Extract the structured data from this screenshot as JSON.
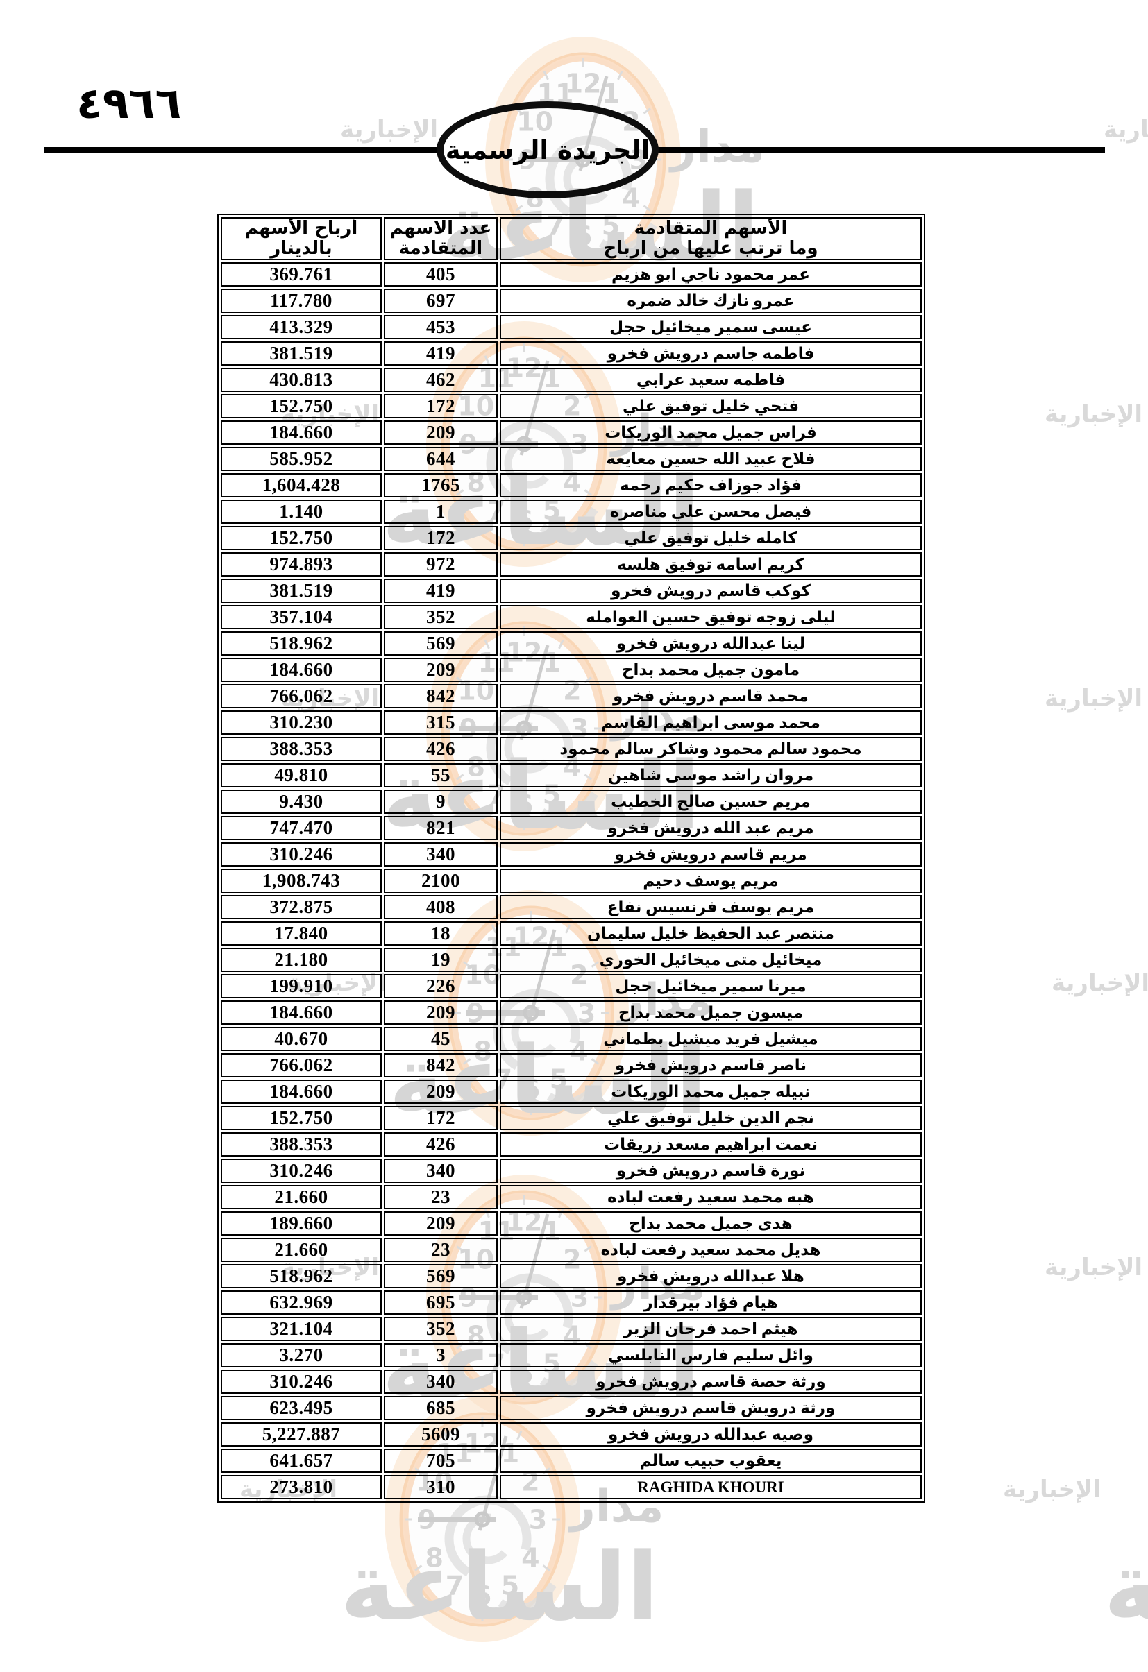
{
  "page": {
    "number": "٤٩٦٦"
  },
  "masthead": {
    "title": "الجريدة الرسمية"
  },
  "watermark": {
    "brand_top": "مدار",
    "brand_big": "الساعة",
    "brand_side": "الإخبارية",
    "clock_numbers": [
      "1",
      "2",
      "3",
      "4",
      "5",
      "6",
      "7",
      "8",
      "9",
      "10",
      "11",
      "12"
    ],
    "accent_color": "#f6b782",
    "text_color": "#d5d5d5"
  },
  "table": {
    "headers": {
      "name_l1": "الأسهم المتقادمة",
      "name_l2": "وما ترتب عليها من ارباح",
      "shares_l1": "عدد الاسهم",
      "shares_l2": "المتقادمة",
      "dividends_l1": "أرباح الأسهم",
      "dividends_l2": "بالدينار"
    },
    "rows": [
      {
        "name": "عمر محمود ناجي ابو هزيم",
        "shares": "405",
        "dividends": "369.761"
      },
      {
        "name": "عمرو نازك خالد ضمره",
        "shares": "697",
        "dividends": "117.780"
      },
      {
        "name": "عيسى سمير ميخائيل حجل",
        "shares": "453",
        "dividends": "413.329"
      },
      {
        "name": "فاطمه جاسم درويش فخرو",
        "shares": "419",
        "dividends": "381.519"
      },
      {
        "name": "فاطمه سعيد عرابي",
        "shares": "462",
        "dividends": "430.813"
      },
      {
        "name": "فتحي خليل توفيق علي",
        "shares": "172",
        "dividends": "152.750"
      },
      {
        "name": "فراس جميل محمد الوريكات",
        "shares": "209",
        "dividends": "184.660"
      },
      {
        "name": "فلاح عبيد الله حسين معايعه",
        "shares": "644",
        "dividends": "585.952"
      },
      {
        "name": "فؤاد جوزاف حكيم رحمه",
        "shares": "1765",
        "dividends": "1,604.428"
      },
      {
        "name": "فيصل محسن علي مناصره",
        "shares": "1",
        "dividends": "1.140"
      },
      {
        "name": "كامله خليل توفيق علي",
        "shares": "172",
        "dividends": "152.750"
      },
      {
        "name": "كريم اسامه توفيق هلسه",
        "shares": "972",
        "dividends": "974.893"
      },
      {
        "name": "كوكب قاسم درويش فخرو",
        "shares": "419",
        "dividends": "381.519"
      },
      {
        "name": "ليلى زوجه توفيق حسين العوامله",
        "shares": "352",
        "dividends": "357.104"
      },
      {
        "name": "لينا عبدالله درويش فخرو",
        "shares": "569",
        "dividends": "518.962"
      },
      {
        "name": "مامون جميل محمد بداح",
        "shares": "209",
        "dividends": "184.660"
      },
      {
        "name": "محمد قاسم درويش فخرو",
        "shares": "842",
        "dividends": "766.062"
      },
      {
        "name": "محمد موسى ابراهيم القاسم",
        "shares": "315",
        "dividends": "310.230"
      },
      {
        "name": "محمود سالم محمود وشاكر سالم محمود",
        "shares": "426",
        "dividends": "388.353"
      },
      {
        "name": "مروان راشد موسى شاهين",
        "shares": "55",
        "dividends": "49.810"
      },
      {
        "name": "مريم حسين صالح الخطيب",
        "shares": "9",
        "dividends": "9.430"
      },
      {
        "name": "مريم عبد الله درويش فخرو",
        "shares": "821",
        "dividends": "747.470"
      },
      {
        "name": "مريم قاسم درويش فخرو",
        "shares": "340",
        "dividends": "310.246"
      },
      {
        "name": "مريم يوسف دحيم",
        "shares": "2100",
        "dividends": "1,908.743"
      },
      {
        "name": "مريم يوسف فرنسيس نفاع",
        "shares": "408",
        "dividends": "372.875"
      },
      {
        "name": "منتصر عبد الحفيظ خليل سليمان",
        "shares": "18",
        "dividends": "17.840"
      },
      {
        "name": "ميخائيل متى ميخائيل الخوري",
        "shares": "19",
        "dividends": "21.180"
      },
      {
        "name": "ميرنا سمير ميخائيل حجل",
        "shares": "226",
        "dividends": "199.910"
      },
      {
        "name": "ميسون جميل محمد بداح",
        "shares": "209",
        "dividends": "184.660"
      },
      {
        "name": "ميشيل فريد ميشيل بطماني",
        "shares": "45",
        "dividends": "40.670"
      },
      {
        "name": "ناصر قاسم درويش فخرو",
        "shares": "842",
        "dividends": "766.062"
      },
      {
        "name": "نبيله جميل محمد الوريكات",
        "shares": "209",
        "dividends": "184.660"
      },
      {
        "name": "نجم الدين خليل توفيق علي",
        "shares": "172",
        "dividends": "152.750"
      },
      {
        "name": "نعمت ابراهيم مسعد زريقات",
        "shares": "426",
        "dividends": "388.353"
      },
      {
        "name": "نورة قاسم درويش فخرو",
        "shares": "340",
        "dividends": "310.246"
      },
      {
        "name": "هبه محمد سعيد رفعت لباده",
        "shares": "23",
        "dividends": "21.660"
      },
      {
        "name": "هدى جميل محمد بداح",
        "shares": "209",
        "dividends": "189.660"
      },
      {
        "name": "هديل محمد سعيد رفعت لباده",
        "shares": "23",
        "dividends": "21.660"
      },
      {
        "name": "هلا عبدالله درويش فخرو",
        "shares": "569",
        "dividends": "518.962"
      },
      {
        "name": "هيام فؤاد بيرقدار",
        "shares": "695",
        "dividends": "632.969"
      },
      {
        "name": "هيثم احمد فرحان الزير",
        "shares": "352",
        "dividends": "321.104"
      },
      {
        "name": "وائل سليم فارس النابلسي",
        "shares": "3",
        "dividends": "3.270"
      },
      {
        "name": "ورثة حصة قاسم درويش فخرو",
        "shares": "340",
        "dividends": "310.246"
      },
      {
        "name": "ورثة درويش قاسم درويش فخرو",
        "shares": "685",
        "dividends": "623.495"
      },
      {
        "name": "وصيه عبدالله درويش فخرو",
        "shares": "5609",
        "dividends": "5,227.887"
      },
      {
        "name": "يعقوب حبيب سالم",
        "shares": "705",
        "dividends": "641.657"
      },
      {
        "name": "RAGHIDA KHOURI",
        "shares": "310",
        "dividends": "273.810"
      }
    ]
  }
}
